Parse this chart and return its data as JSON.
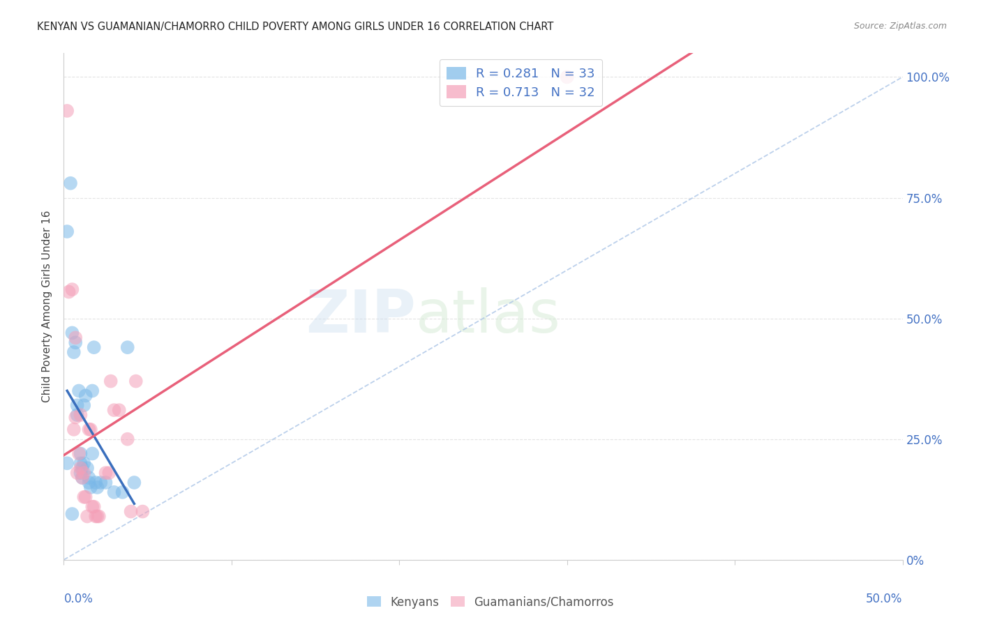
{
  "title": "KENYAN VS GUAMANIAN/CHAMORRO CHILD POVERTY AMONG GIRLS UNDER 16 CORRELATION CHART",
  "source": "Source: ZipAtlas.com",
  "ylabel": "Child Poverty Among Girls Under 16",
  "watermark_zip": "ZIP",
  "watermark_atlas": "atlas",
  "kenyan_points": [
    [
      0.2,
      20.0
    ],
    [
      0.2,
      68.0
    ],
    [
      0.4,
      78.0
    ],
    [
      0.5,
      47.0
    ],
    [
      0.6,
      43.0
    ],
    [
      0.7,
      45.0
    ],
    [
      0.8,
      30.0
    ],
    [
      0.8,
      32.0
    ],
    [
      0.9,
      35.0
    ],
    [
      1.0,
      18.0
    ],
    [
      1.0,
      20.0
    ],
    [
      1.0,
      22.0
    ],
    [
      1.1,
      17.0
    ],
    [
      1.1,
      19.0
    ],
    [
      1.2,
      20.0
    ],
    [
      1.2,
      32.0
    ],
    [
      1.3,
      34.0
    ],
    [
      1.4,
      19.0
    ],
    [
      1.5,
      16.0
    ],
    [
      1.5,
      17.0
    ],
    [
      1.6,
      15.0
    ],
    [
      1.7,
      22.0
    ],
    [
      1.7,
      35.0
    ],
    [
      1.8,
      44.0
    ],
    [
      1.9,
      16.0
    ],
    [
      2.0,
      15.0
    ],
    [
      2.2,
      16.0
    ],
    [
      2.5,
      16.0
    ],
    [
      3.0,
      14.0
    ],
    [
      3.5,
      14.0
    ],
    [
      3.8,
      44.0
    ],
    [
      4.2,
      16.0
    ],
    [
      0.5,
      9.5
    ]
  ],
  "guamanian_points": [
    [
      0.3,
      55.5
    ],
    [
      0.5,
      56.0
    ],
    [
      0.6,
      27.0
    ],
    [
      0.7,
      46.0
    ],
    [
      0.7,
      29.5
    ],
    [
      0.8,
      18.0
    ],
    [
      0.9,
      22.0
    ],
    [
      1.0,
      19.0
    ],
    [
      1.0,
      30.0
    ],
    [
      1.1,
      17.0
    ],
    [
      1.2,
      18.0
    ],
    [
      1.2,
      13.0
    ],
    [
      1.3,
      13.0
    ],
    [
      1.4,
      9.0
    ],
    [
      1.5,
      27.0
    ],
    [
      1.6,
      27.0
    ],
    [
      1.7,
      11.0
    ],
    [
      1.8,
      11.0
    ],
    [
      1.9,
      9.0
    ],
    [
      2.0,
      9.0
    ],
    [
      2.1,
      9.0
    ],
    [
      2.5,
      18.0
    ],
    [
      2.7,
      18.0
    ],
    [
      2.8,
      37.0
    ],
    [
      3.0,
      31.0
    ],
    [
      3.3,
      31.0
    ],
    [
      3.8,
      25.0
    ],
    [
      4.0,
      10.0
    ],
    [
      4.3,
      37.0
    ],
    [
      4.7,
      10.0
    ],
    [
      30.0,
      100.0
    ],
    [
      0.2,
      93.0
    ]
  ],
  "kenyan_color": "#7ab8e8",
  "guamanian_color": "#f4a0b8",
  "kenyan_line_color": "#3a6fbd",
  "guamanian_line_color": "#e8607a",
  "diagonal_color": "#b0c8e8",
  "bg_color": "#ffffff",
  "grid_color": "#dddddd",
  "xlim": [
    0,
    50
  ],
  "ylim": [
    0,
    105
  ],
  "title_color": "#222222",
  "source_color": "#888888",
  "axis_label_color": "#4472c4",
  "right_ytick_labels": [
    "0%",
    "25.0%",
    "50.0%",
    "75.0%",
    "100.0%"
  ],
  "right_ytick_positions": [
    0,
    25,
    50,
    75,
    100
  ],
  "kenyan_R": 0.281,
  "kenyan_N": 33,
  "guamanian_R": 0.713,
  "guamanian_N": 32
}
